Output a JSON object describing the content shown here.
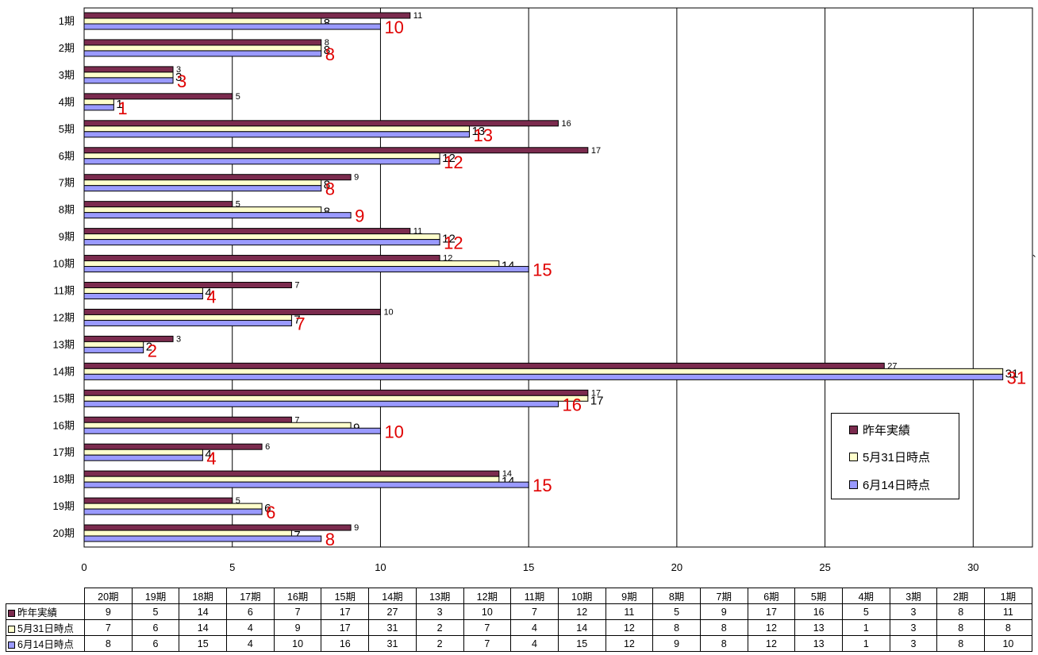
{
  "chart_data": {
    "type": "bar",
    "orientation": "horizontal",
    "categories": [
      "1期",
      "2期",
      "3期",
      "4期",
      "5期",
      "6期",
      "7期",
      "8期",
      "9期",
      "10期",
      "11期",
      "12期",
      "13期",
      "14期",
      "15期",
      "16期",
      "17期",
      "18期",
      "19期",
      "20期"
    ],
    "series": [
      {
        "name": "昨年実績",
        "color": "#7b2b4e",
        "values": [
          11,
          8,
          3,
          5,
          16,
          17,
          9,
          5,
          11,
          12,
          7,
          10,
          3,
          27,
          17,
          7,
          6,
          14,
          5,
          9
        ]
      },
      {
        "name": "5月31日時点",
        "color": "#ffffcc",
        "values": [
          8,
          8,
          3,
          1,
          13,
          12,
          8,
          8,
          12,
          14,
          4,
          7,
          2,
          31,
          17,
          9,
          4,
          14,
          6,
          7
        ]
      },
      {
        "name": "6月14日時点",
        "color": "#9a9aff",
        "values": [
          10,
          8,
          3,
          1,
          13,
          12,
          8,
          9,
          12,
          15,
          4,
          7,
          2,
          31,
          16,
          10,
          4,
          15,
          6,
          8
        ]
      }
    ],
    "highlight_labels": [
      10,
      8,
      3,
      1,
      13,
      12,
      8,
      9,
      12,
      15,
      4,
      7,
      2,
      31,
      16,
      10,
      4,
      15,
      6,
      8
    ],
    "highlight_color": "#e00000",
    "xlim": [
      0,
      32
    ],
    "xticks": [
      0,
      5,
      10,
      15,
      20,
      25,
      30
    ],
    "title": "",
    "xlabel": "",
    "ylabel": "",
    "grid": "vertical",
    "legend_position": "right"
  },
  "data_table": {
    "columns": [
      "20期",
      "19期",
      "18期",
      "17期",
      "16期",
      "15期",
      "14期",
      "13期",
      "12期",
      "11期",
      "10期",
      "9期",
      "8期",
      "7期",
      "6期",
      "5期",
      "4期",
      "3期",
      "2期",
      "1期"
    ],
    "rows": [
      {
        "name": "昨年実績",
        "color": "#7b2b4e",
        "values": [
          9,
          5,
          14,
          6,
          7,
          17,
          27,
          3,
          10,
          7,
          12,
          11,
          5,
          9,
          17,
          16,
          5,
          3,
          8,
          11
        ]
      },
      {
        "name": "5月31日時点",
        "color": "#ffffcc",
        "values": [
          7,
          6,
          14,
          4,
          9,
          17,
          31,
          2,
          7,
          4,
          14,
          12,
          8,
          8,
          12,
          13,
          1,
          3,
          8,
          8
        ]
      },
      {
        "name": "6月14日時点",
        "color": "#9a9aff",
        "values": [
          8,
          6,
          15,
          4,
          10,
          16,
          31,
          2,
          7,
          4,
          15,
          12,
          9,
          8,
          12,
          13,
          1,
          3,
          8,
          10
        ]
      }
    ]
  },
  "legend": {
    "items": [
      {
        "label": "昨年実績",
        "color": "#7b2b4e"
      },
      {
        "label": "5月31日時点",
        "color": "#ffffcc"
      },
      {
        "label": "6月14日時点",
        "color": "#9a9aff"
      }
    ]
  },
  "stray_mark": "、"
}
